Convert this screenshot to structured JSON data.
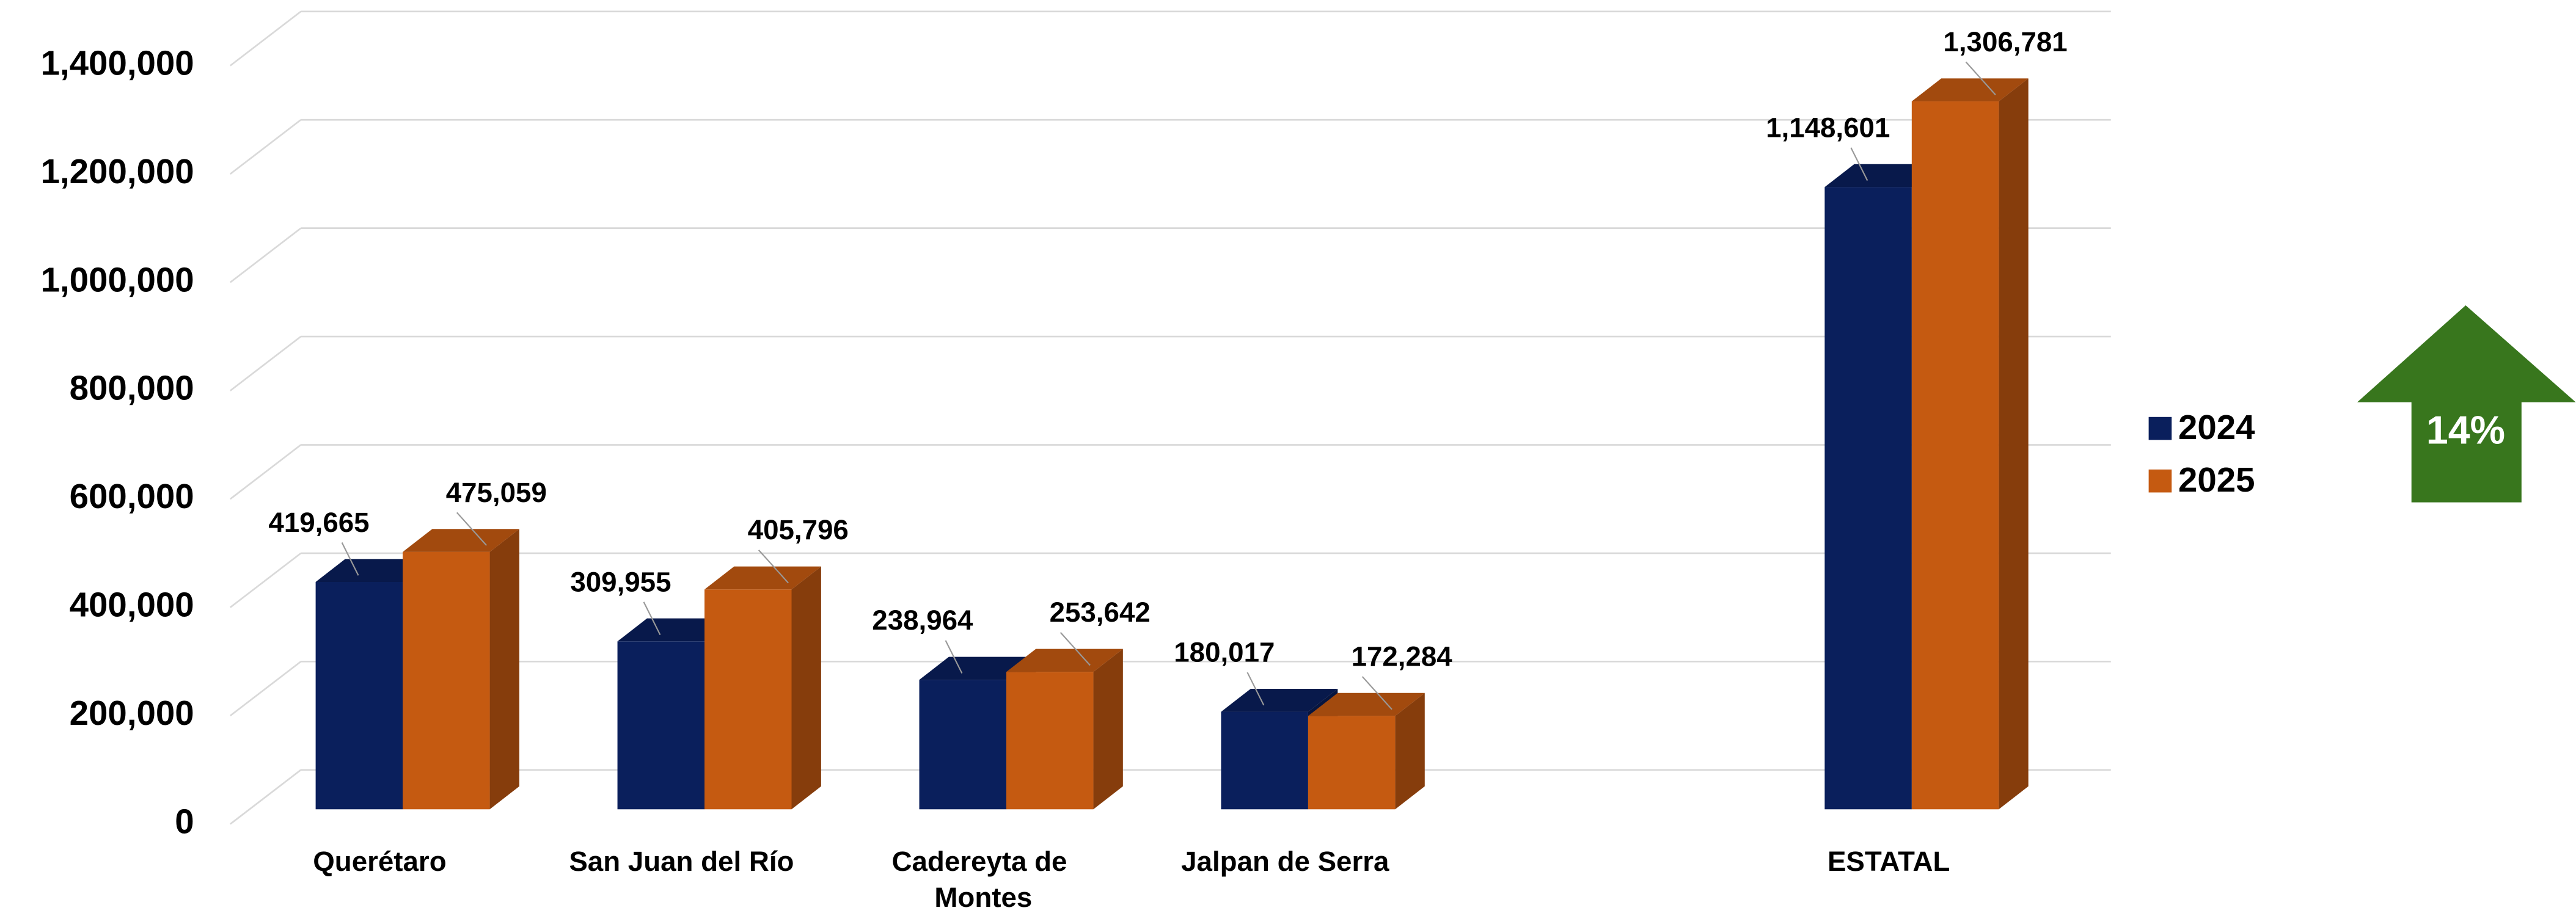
{
  "chart_data": {
    "type": "bar3d",
    "categories": [
      "Querétaro",
      "San Juan del Río",
      "Cadereyta de Montes",
      "Jalpan de Serra",
      null,
      "ESTATAL"
    ],
    "series": [
      {
        "name": "2024",
        "color": "#0a1f5c",
        "values": [
          419665,
          309955,
          238964,
          180017,
          null,
          1148601
        ],
        "value_labels": [
          "419,665",
          "309,955",
          "238,964",
          "180,017",
          null,
          "1,148,601"
        ]
      },
      {
        "name": "2025",
        "color": "#c55a11",
        "values": [
          475059,
          405796,
          253642,
          172284,
          null,
          1306781
        ],
        "value_labels": [
          "475,059",
          "405,796",
          "253,642",
          "172,284",
          null,
          "1,306,781"
        ]
      }
    ],
    "ylim": [
      0,
      1400000
    ],
    "yticks": [
      0,
      {
        "value": 200000,
        "label": "200,000"
      },
      {
        "value": 400000,
        "label": "400,000"
      },
      {
        "value": 600000,
        "label": "600,000"
      },
      {
        "value": 800000,
        "label": "800,000"
      },
      {
        "value": 1000000,
        "label": "1,000,000"
      },
      {
        "value": 1200000,
        "label": "1,200,000"
      },
      {
        "value": 1400000,
        "label": "1,400,000"
      }
    ],
    "grid": true,
    "legend": "right",
    "annotation": "14%",
    "annotation_color": "#38761d"
  }
}
